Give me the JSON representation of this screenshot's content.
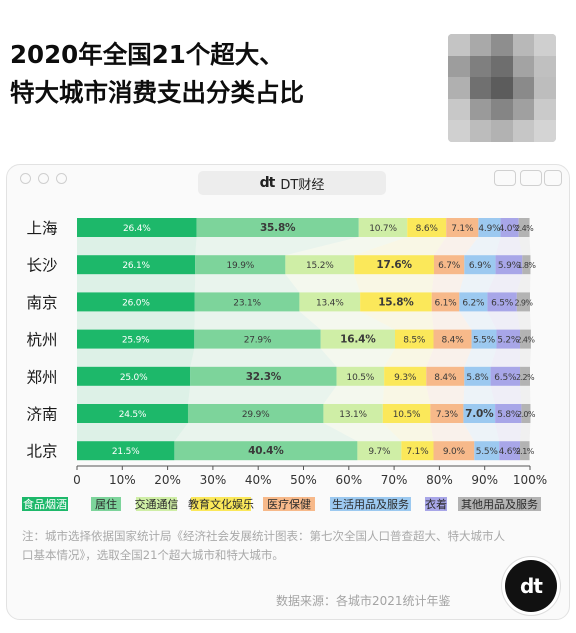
{
  "title_line1": "2020年全国21个超大、",
  "title_line2": "特大城市消费支出分类占比",
  "brand": {
    "logo": "dt",
    "name": "DT财经"
  },
  "note": "注：城市选择依据国家统计局《经济社会发展统计图表：第七次全国人口普查超大、特大城市人口基本情况》，选取全国21个超大城市和特大城市。",
  "source": "数据来源：各城市2021统计年鉴",
  "colors": [
    "#1db86a",
    "#7dd49b",
    "#cfeea6",
    "#fbe85a",
    "#f7b98a",
    "#9cc9f0",
    "#a8a6e8",
    "#b3b3b3"
  ],
  "chart_data": {
    "type": "bar",
    "orientation": "horizontal",
    "stacked": true,
    "categories": [
      "上海",
      "长沙",
      "南京",
      "杭州",
      "郑州",
      "济南",
      "北京"
    ],
    "series": [
      {
        "name": "食品烟酒",
        "values": [
          26.4,
          26.1,
          26.0,
          25.9,
          25.0,
          24.5,
          21.5
        ]
      },
      {
        "name": "居住",
        "values": [
          35.8,
          19.9,
          23.1,
          27.9,
          32.3,
          29.9,
          40.4
        ]
      },
      {
        "name": "交通通信",
        "values": [
          10.7,
          15.2,
          13.4,
          16.4,
          10.5,
          13.1,
          9.7
        ]
      },
      {
        "name": "教育文化娱乐",
        "values": [
          8.6,
          17.6,
          15.8,
          8.5,
          9.3,
          10.5,
          7.1
        ]
      },
      {
        "name": "医疗保健",
        "values": [
          7.1,
          6.7,
          6.1,
          8.4,
          8.4,
          7.3,
          9.0
        ]
      },
      {
        "name": "生活用品及服务",
        "values": [
          4.9,
          6.9,
          6.2,
          5.5,
          5.8,
          7.0,
          5.5
        ]
      },
      {
        "name": "衣着",
        "values": [
          4.0,
          5.9,
          6.5,
          5.2,
          6.5,
          5.8,
          4.6
        ]
      },
      {
        "name": "其他用品及服务",
        "values": [
          2.4,
          1.8,
          2.9,
          2.4,
          2.2,
          2.0,
          2.1
        ]
      }
    ],
    "labels": [
      [
        "26.4%",
        "35.8%",
        "10.7%",
        "8.6%",
        "7.1%",
        "4.9%",
        "4.0%",
        "2.4%"
      ],
      [
        "26.1%",
        "19.9%",
        "15.2%",
        "17.6%",
        "6.7%",
        "6.9%",
        "5.9%",
        "1.8%"
      ],
      [
        "26.0%",
        "23.1%",
        "13.4%",
        "15.8%",
        "6.1%",
        "6.2%",
        "6.5%",
        "2.9%"
      ],
      [
        "25.9%",
        "27.9%",
        "16.4%",
        "8.5%",
        "8.4%",
        "5.5%",
        "5.2%",
        "2.4%"
      ],
      [
        "25.0%",
        "32.3%",
        "10.5%",
        "9.3%",
        "8.4%",
        "5.8%",
        "6.5%",
        "2.2%"
      ],
      [
        "24.5%",
        "29.9%",
        "13.1%",
        "10.5%",
        "7.3%",
        "7.0%",
        "5.8%",
        "2.0%"
      ],
      [
        "21.5%",
        "40.4%",
        "9.7%",
        "7.1%",
        "9.0%",
        "5.5%",
        "4.6%",
        "2.1%"
      ]
    ],
    "bold_series_by_row": [
      1,
      3,
      3,
      2,
      1,
      5,
      1
    ],
    "xticks": [
      "0",
      "10%",
      "20%",
      "30%",
      "40%",
      "50%",
      "60%",
      "70%",
      "80%",
      "90%",
      "100%"
    ],
    "xlim": [
      0,
      100
    ],
    "legend_position": "bottom"
  }
}
